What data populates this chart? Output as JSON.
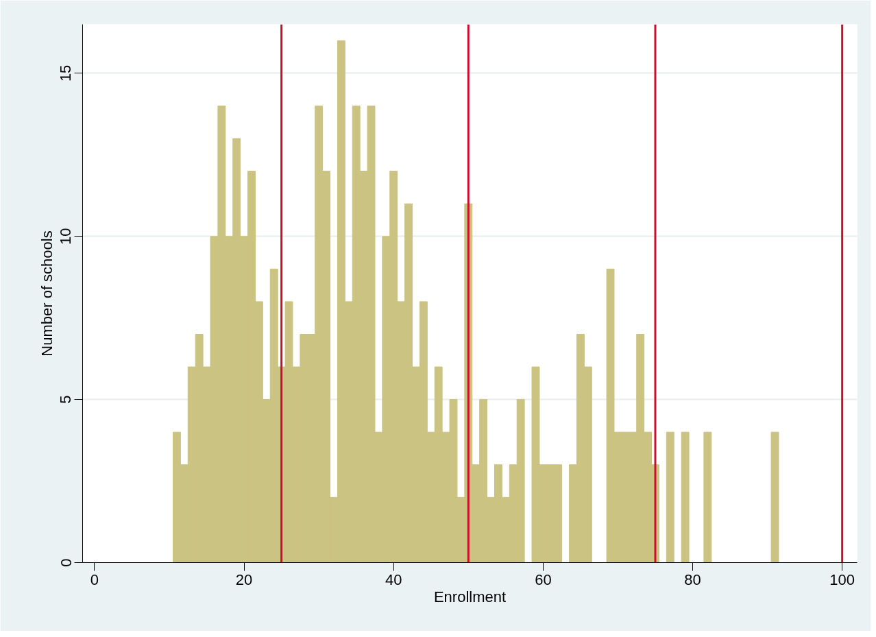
{
  "chart_data": {
    "type": "histogram",
    "xlabel": "Enrollment",
    "ylabel": "Number of schools",
    "bins": [
      10.5,
      11.5,
      12.5,
      13.5,
      14.5,
      15.5,
      16.5,
      17.5,
      18.5,
      19.5,
      20.5,
      21.5,
      22.5,
      23.5,
      24.5,
      25.5,
      26.5,
      27.5,
      28.5,
      29.5,
      30.5,
      31.5,
      32.5,
      33.5,
      34.5,
      35.5,
      36.5,
      37.5,
      38.5,
      39.5,
      40.5,
      41.5,
      42.5,
      43.5,
      44.5,
      45.5,
      46.5,
      47.5,
      48.5,
      49.5,
      50.5,
      51.5,
      52.5,
      53.5,
      54.5,
      55.5,
      56.5,
      57.5,
      58.5,
      59.5,
      60.5,
      61.5,
      62.5,
      63.5,
      64.5,
      65.5,
      66.5,
      67.5,
      68.5,
      69.5,
      70.5,
      71.5,
      72.5,
      73.5,
      74.5,
      75.5,
      76.5,
      77.5,
      78.5,
      79.5,
      80.5,
      81.5,
      82.5,
      83.5,
      84.5,
      85.5,
      86.5,
      87.5,
      88.5,
      89.5,
      90.5,
      91.5
    ],
    "values": [
      4,
      3,
      6,
      7,
      6,
      10,
      14,
      10,
      13,
      10,
      12,
      8,
      5,
      9,
      6,
      8,
      6,
      7,
      7,
      14,
      12,
      2,
      16,
      8,
      14,
      12,
      14,
      4,
      10,
      12,
      8,
      11,
      6,
      8,
      4,
      6,
      4,
      5,
      2,
      11,
      3,
      5,
      2,
      3,
      2,
      3,
      5,
      0,
      6,
      3,
      3,
      3,
      0,
      3,
      7,
      6,
      0,
      0,
      9,
      4,
      4,
      4,
      7,
      4,
      3,
      0,
      4,
      0,
      4,
      0,
      0,
      4,
      0,
      0,
      0,
      0,
      0,
      0,
      0,
      0,
      4
    ],
    "color": "#cbc382",
    "xlim": [
      -1.6,
      102
    ],
    "ylim": [
      0,
      16.5
    ],
    "xticks": [
      0,
      20,
      40,
      60,
      80,
      100
    ],
    "yticks": [
      0,
      5,
      10,
      15
    ],
    "grid": "y",
    "ref_lines": [
      {
        "axis": "x",
        "value": 25,
        "color": "#c8102e"
      },
      {
        "axis": "x",
        "value": 50,
        "color": "#c8102e"
      },
      {
        "axis": "x",
        "value": 75,
        "color": "#c8102e"
      },
      {
        "axis": "x",
        "value": 100,
        "color": "#c8102e"
      }
    ]
  }
}
